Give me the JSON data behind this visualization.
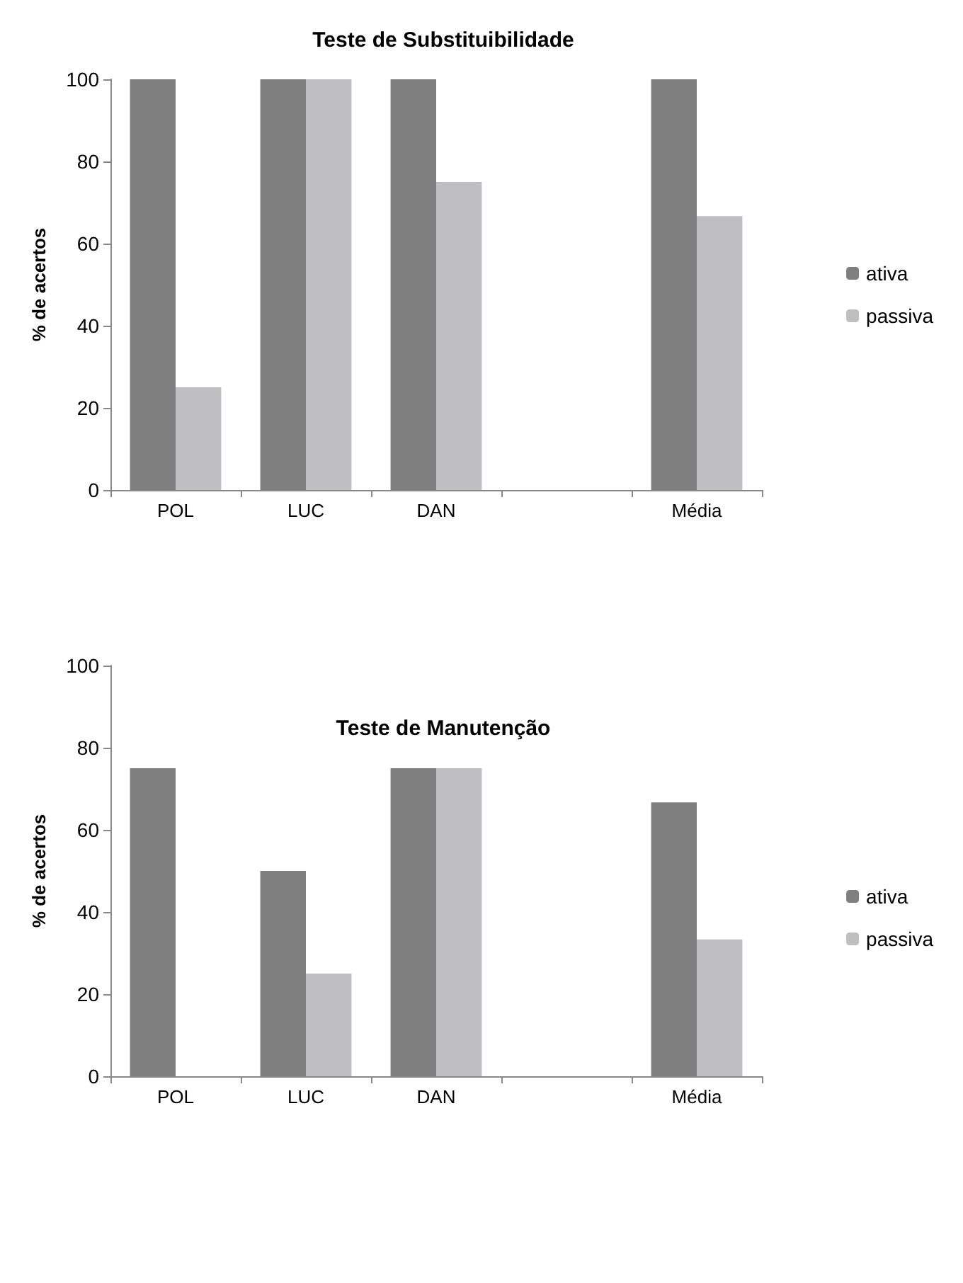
{
  "chart_data": [
    {
      "type": "bar",
      "title": "Teste de Substituibilidade",
      "ylabel": "% de acertos",
      "categories": [
        "POL",
        "LUC",
        "DAN",
        null,
        "Média"
      ],
      "series": [
        {
          "name": "ativa",
          "color": "#7f7f80",
          "values": [
            100,
            100,
            100,
            null,
            100
          ]
        },
        {
          "name": "passiva",
          "color": "#bfbfc1",
          "values": [
            25,
            100,
            75,
            null,
            66.7
          ]
        }
      ],
      "ylim": [
        0,
        100
      ],
      "yticks": [
        0,
        20,
        40,
        60,
        80,
        100
      ],
      "grid": false,
      "legend": "right"
    },
    {
      "type": "bar",
      "title": "Teste de Manutenção",
      "ylabel": "% de acertos",
      "categories": [
        "POL",
        "LUC",
        "DAN",
        null,
        "Média"
      ],
      "series": [
        {
          "name": "ativa",
          "color": "#7f7f80",
          "values": [
            75,
            50,
            75,
            null,
            66.7
          ]
        },
        {
          "name": "passiva",
          "color": "#bfbfc1",
          "values": [
            0,
            25,
            75,
            null,
            33.3
          ]
        }
      ],
      "ylim": [
        0,
        100
      ],
      "yticks": [
        0,
        20,
        40,
        60,
        80,
        100
      ],
      "grid": false,
      "legend": "right"
    }
  ]
}
